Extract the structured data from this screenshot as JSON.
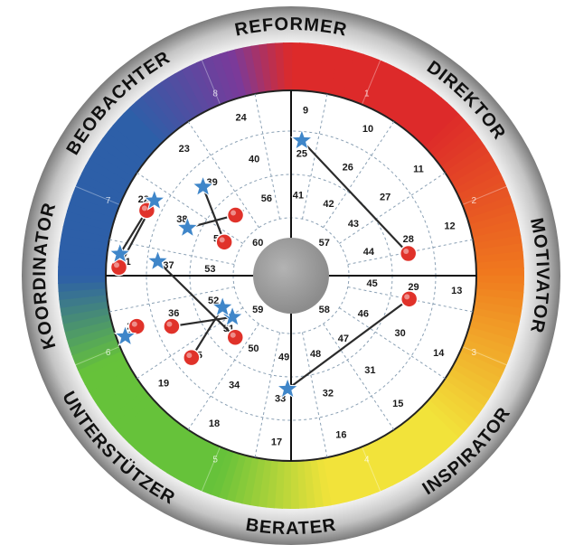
{
  "roles": [
    {
      "label": "REFORMER"
    },
    {
      "label": "DIREKTOR"
    },
    {
      "label": "MOTIVATOR"
    },
    {
      "label": "INSPIRATOR"
    },
    {
      "label": "BERATER"
    },
    {
      "label": "UNTERSTÜTZER"
    },
    {
      "label": "KOORDINATOR"
    },
    {
      "label": "BEOBACHTER"
    }
  ],
  "sector_numbers": [
    "1",
    "2",
    "3",
    "4",
    "5",
    "6",
    "7",
    "8"
  ],
  "colors": {
    "ring_outer": "#8a8a8a",
    "ring_light": "#e8e8e8",
    "red": "#dd2a2a",
    "orange": "#f07a1e",
    "yellow": "#f2e33a",
    "green": "#66c23a",
    "blue": "#2d5fa8",
    "purple": "#7a3a9a",
    "star": "#3f86c9",
    "dot": "#e0322a"
  },
  "field_numbers": {
    "outer": [
      "9",
      "10",
      "11",
      "12",
      "13",
      "14",
      "15",
      "16",
      "17",
      "18",
      "19",
      "20",
      "21",
      "22",
      "23",
      "24"
    ],
    "ring3": [
      "25",
      "26",
      "27",
      "28",
      "29",
      "30",
      "31",
      "32",
      "33",
      "34",
      "35",
      "36",
      "37",
      "38",
      "39",
      "40"
    ],
    "ring2": [
      "41",
      "42",
      "43",
      "44",
      "45",
      "46",
      "47",
      "48",
      "49",
      "50",
      "51",
      "52",
      "53",
      "54",
      "55",
      "56"
    ],
    "inner": [
      "57",
      "58",
      "59",
      "60"
    ]
  },
  "markers": [
    {
      "star": "25",
      "dot": "28"
    },
    {
      "star": "33",
      "dot": "29"
    },
    {
      "star": "39",
      "dot": "54"
    },
    {
      "star": "38",
      "dot": "55"
    },
    {
      "star": "21",
      "dot": "22"
    },
    {
      "star": "22",
      "dot": "21"
    },
    {
      "star": "37",
      "dot": "51"
    },
    {
      "star": "51",
      "dot": "36"
    },
    {
      "star": "52",
      "dot": "35"
    },
    {
      "star": "20",
      "dot": "20"
    }
  ]
}
